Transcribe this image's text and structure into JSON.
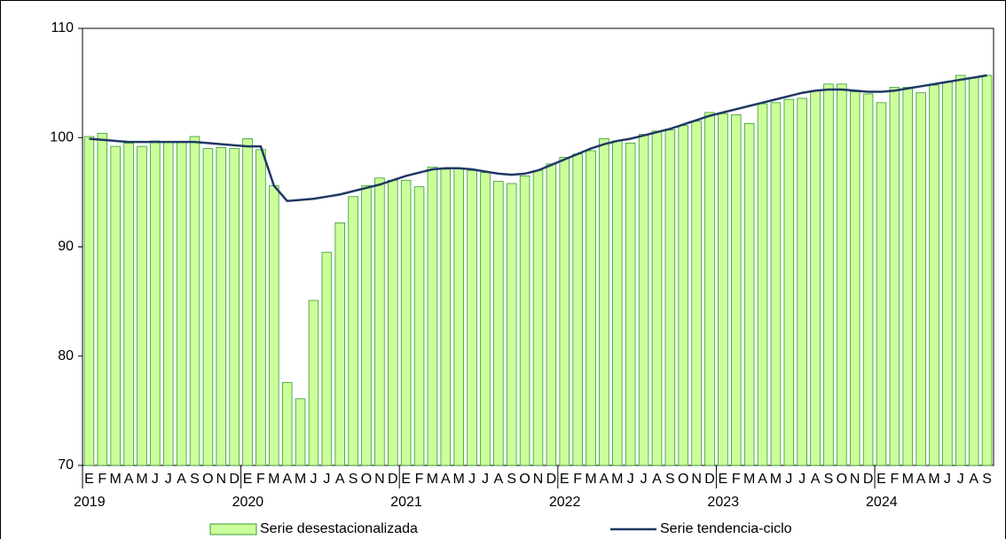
{
  "chart_data": {
    "type": "bar",
    "categories": [
      "E",
      "F",
      "M",
      "A",
      "M",
      "J",
      "J",
      "A",
      "S",
      "O",
      "N",
      "D",
      "E",
      "F",
      "M",
      "A",
      "M",
      "J",
      "J",
      "A",
      "S",
      "O",
      "N",
      "D",
      "E",
      "F",
      "M",
      "A",
      "M",
      "J",
      "J",
      "A",
      "S",
      "O",
      "N",
      "D",
      "E",
      "F",
      "M",
      "A",
      "M",
      "J",
      "J",
      "A",
      "S",
      "O",
      "N",
      "D",
      "E",
      "F",
      "M",
      "A",
      "M",
      "J",
      "J",
      "A",
      "S",
      "O",
      "N",
      "D",
      "E",
      "F",
      "M",
      "A",
      "M",
      "J",
      "J",
      "A",
      "S"
    ],
    "years": [
      "2019",
      "2020",
      "2021",
      "2022",
      "2023",
      "2024"
    ],
    "series": [
      {
        "name": "Serie desestacionalizada",
        "type": "bar",
        "color": "#ccff99",
        "stroke": "#339933",
        "values": [
          100.1,
          100.4,
          99.2,
          99.5,
          99.2,
          99.7,
          99.6,
          99.6,
          100.1,
          99.0,
          99.1,
          99.0,
          99.9,
          98.9,
          95.6,
          77.6,
          76.1,
          85.1,
          89.5,
          92.2,
          94.6,
          95.6,
          96.3,
          96.1,
          96.1,
          95.5,
          97.3,
          97.1,
          97.2,
          97.0,
          96.8,
          96.0,
          95.8,
          96.5,
          97.0,
          97.6,
          98.2,
          98.5,
          98.8,
          99.9,
          99.7,
          99.5,
          100.3,
          100.6,
          100.7,
          101.1,
          101.5,
          102.3,
          102.2,
          102.1,
          101.3,
          103.1,
          103.2,
          103.5,
          103.6,
          104.3,
          104.9,
          104.9,
          104.2,
          104.0,
          103.2,
          104.6,
          104.6,
          104.1,
          104.8,
          105.1,
          105.7,
          105.5,
          105.7
        ]
      },
      {
        "name": "Serie tendencia-ciclo",
        "type": "line",
        "color": "#1f3864",
        "values": [
          99.9,
          99.8,
          99.7,
          99.6,
          99.6,
          99.6,
          99.6,
          99.6,
          99.6,
          99.5,
          99.4,
          99.3,
          99.2,
          99.2,
          95.6,
          94.2,
          94.3,
          94.4,
          94.6,
          94.8,
          95.1,
          95.4,
          95.7,
          96.1,
          96.5,
          96.8,
          97.1,
          97.2,
          97.2,
          97.1,
          96.9,
          96.7,
          96.6,
          96.7,
          97.0,
          97.5,
          98.0,
          98.5,
          99.0,
          99.4,
          99.7,
          99.9,
          100.2,
          100.5,
          100.8,
          101.2,
          101.6,
          102.0,
          102.3,
          102.6,
          102.9,
          103.2,
          103.5,
          103.8,
          104.1,
          104.3,
          104.4,
          104.4,
          104.3,
          104.2,
          104.2,
          104.3,
          104.5,
          104.7,
          104.9,
          105.1,
          105.3,
          105.5,
          105.7
        ]
      }
    ],
    "ylim": [
      70,
      110
    ],
    "yticks": [
      70,
      80,
      90,
      100,
      110
    ]
  }
}
